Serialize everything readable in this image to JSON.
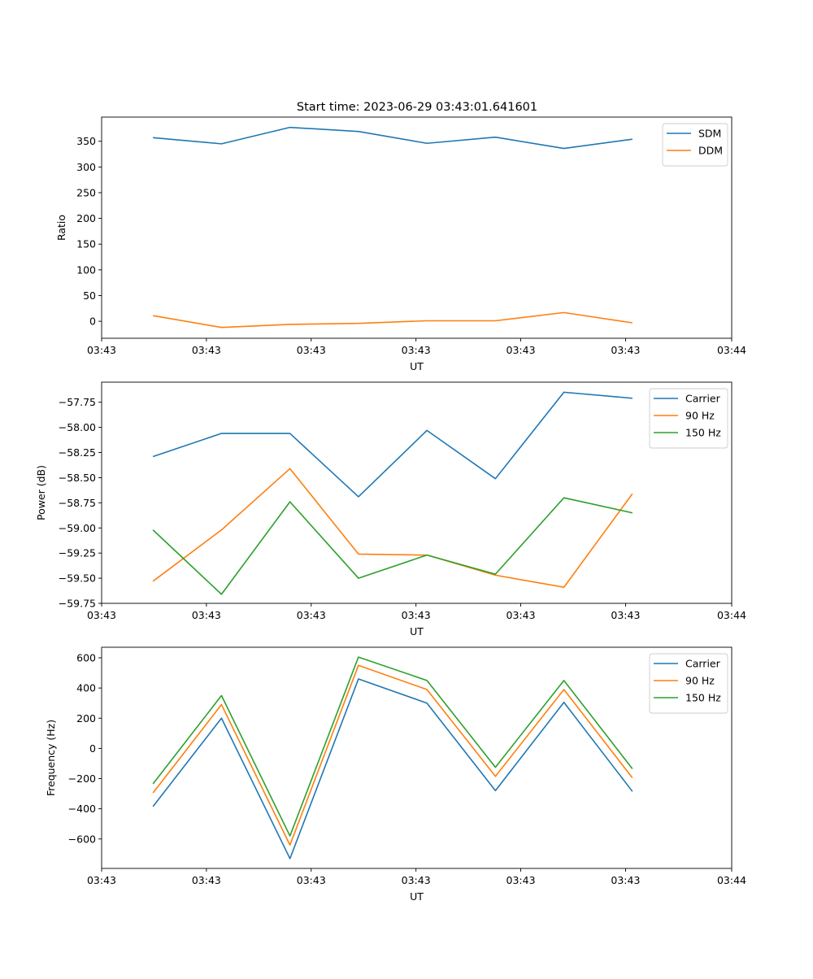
{
  "figure": {
    "title": "Start time: 2023-06-29 03:43:01.641601"
  },
  "colors": {
    "blue": "#1f77b4",
    "orange": "#ff7f0e",
    "green": "#2ca02c"
  },
  "chart_data": [
    {
      "type": "line",
      "title": "Start time: 2023-06-29 03:43:01.641601",
      "xlabel": "UT",
      "ylabel": "Ratio",
      "x": [
        1,
        2,
        3,
        4,
        5,
        6,
        7,
        8
      ],
      "xlim": [
        0.25,
        9.45
      ],
      "xticks": [
        0.25,
        1.78,
        3.31,
        4.84,
        6.37,
        7.9,
        9.45
      ],
      "xtick_labels": [
        "03:43",
        "03:43",
        "03:43",
        "03:43",
        "03:43",
        "03:43",
        "03:44"
      ],
      "ylim": [
        -33,
        397
      ],
      "yticks": [
        0,
        50,
        100,
        150,
        200,
        250,
        300,
        350
      ],
      "ytick_labels": [
        "0",
        "50",
        "100",
        "150",
        "200",
        "250",
        "300",
        "350"
      ],
      "legend": "top-right",
      "series": [
        {
          "name": "SDM",
          "color": "#1f77b4",
          "values": [
            357,
            345,
            377,
            369,
            346,
            358,
            336,
            354
          ]
        },
        {
          "name": "DDM",
          "color": "#ff7f0e",
          "values": [
            11,
            -12,
            -6,
            -4,
            1,
            1,
            17,
            -3
          ]
        }
      ]
    },
    {
      "type": "line",
      "xlabel": "UT",
      "ylabel": "Power (dB)",
      "x": [
        1,
        2,
        3,
        4,
        5,
        6,
        7,
        8
      ],
      "xlim": [
        0.25,
        9.45
      ],
      "xticks": [
        0.25,
        1.78,
        3.31,
        4.84,
        6.37,
        7.9,
        9.45
      ],
      "xtick_labels": [
        "03:43",
        "03:43",
        "03:43",
        "03:43",
        "03:43",
        "03:43",
        "03:44"
      ],
      "ylim": [
        -59.75,
        -57.55
      ],
      "yticks": [
        -59.75,
        -59.5,
        -59.25,
        -59.0,
        -58.75,
        -58.5,
        -58.25,
        -58.0,
        -57.75
      ],
      "ytick_labels": [
        "−59.75",
        "−59.50",
        "−59.25",
        "−59.00",
        "−58.75",
        "−58.50",
        "−58.25",
        "−58.00",
        "−57.75"
      ],
      "legend": "top-right",
      "series": [
        {
          "name": "Carrier",
          "color": "#1f77b4",
          "values": [
            -58.29,
            -58.06,
            -58.06,
            -58.69,
            -58.03,
            -58.51,
            -57.65,
            -57.71
          ]
        },
        {
          "name": "90 Hz",
          "color": "#ff7f0e",
          "values": [
            -59.53,
            -59.02,
            -58.41,
            -59.26,
            -59.27,
            -59.47,
            -59.59,
            -58.66
          ]
        },
        {
          "name": "150 Hz",
          "color": "#2ca02c",
          "values": [
            -59.02,
            -59.66,
            -58.74,
            -59.5,
            -59.27,
            -59.46,
            -58.7,
            -58.85
          ]
        }
      ]
    },
    {
      "type": "line",
      "xlabel": "UT",
      "ylabel": "Frequency (Hz)",
      "x": [
        1,
        2,
        3,
        4,
        5,
        6,
        7,
        8
      ],
      "xlim": [
        0.25,
        9.45
      ],
      "xticks": [
        0.25,
        1.78,
        3.31,
        4.84,
        6.37,
        7.9,
        9.45
      ],
      "xtick_labels": [
        "03:43",
        "03:43",
        "03:43",
        "03:43",
        "03:43",
        "03:43",
        "03:44"
      ],
      "ylim": [
        -795,
        670
      ],
      "yticks": [
        -600,
        -400,
        -200,
        0,
        200,
        400,
        600
      ],
      "ytick_labels": [
        "−600",
        "−400",
        "−200",
        "0",
        "200",
        "400",
        "600"
      ],
      "legend": "top-right",
      "series": [
        {
          "name": "Carrier",
          "color": "#1f77b4",
          "values": [
            -385,
            200,
            -730,
            460,
            300,
            -280,
            305,
            -285
          ]
        },
        {
          "name": "90 Hz",
          "color": "#ff7f0e",
          "values": [
            -295,
            290,
            -640,
            550,
            390,
            -185,
            390,
            -195
          ]
        },
        {
          "name": "150 Hz",
          "color": "#2ca02c",
          "values": [
            -235,
            350,
            -580,
            605,
            450,
            -125,
            450,
            -135
          ]
        }
      ]
    }
  ]
}
